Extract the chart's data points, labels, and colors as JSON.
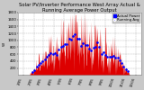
{
  "title": "Solar PV/Inverter Performance West Array Actual & Running Average Power Output",
  "title_fontsize": 3.8,
  "bg_color": "#c8c8c8",
  "plot_bg_color": "#ffffff",
  "bar_color": "#dd0000",
  "avg_color": "#0000ff",
  "grid_color": "#aaaaaa",
  "ylabel": "W",
  "ylabel_fontsize": 3.0,
  "tick_fontsize": 2.8,
  "legend_fontsize": 2.8,
  "ylim": [
    0,
    1800
  ],
  "yticks": [
    200,
    400,
    600,
    800,
    1000,
    1200,
    1400,
    1600,
    1800
  ],
  "num_points": 365
}
